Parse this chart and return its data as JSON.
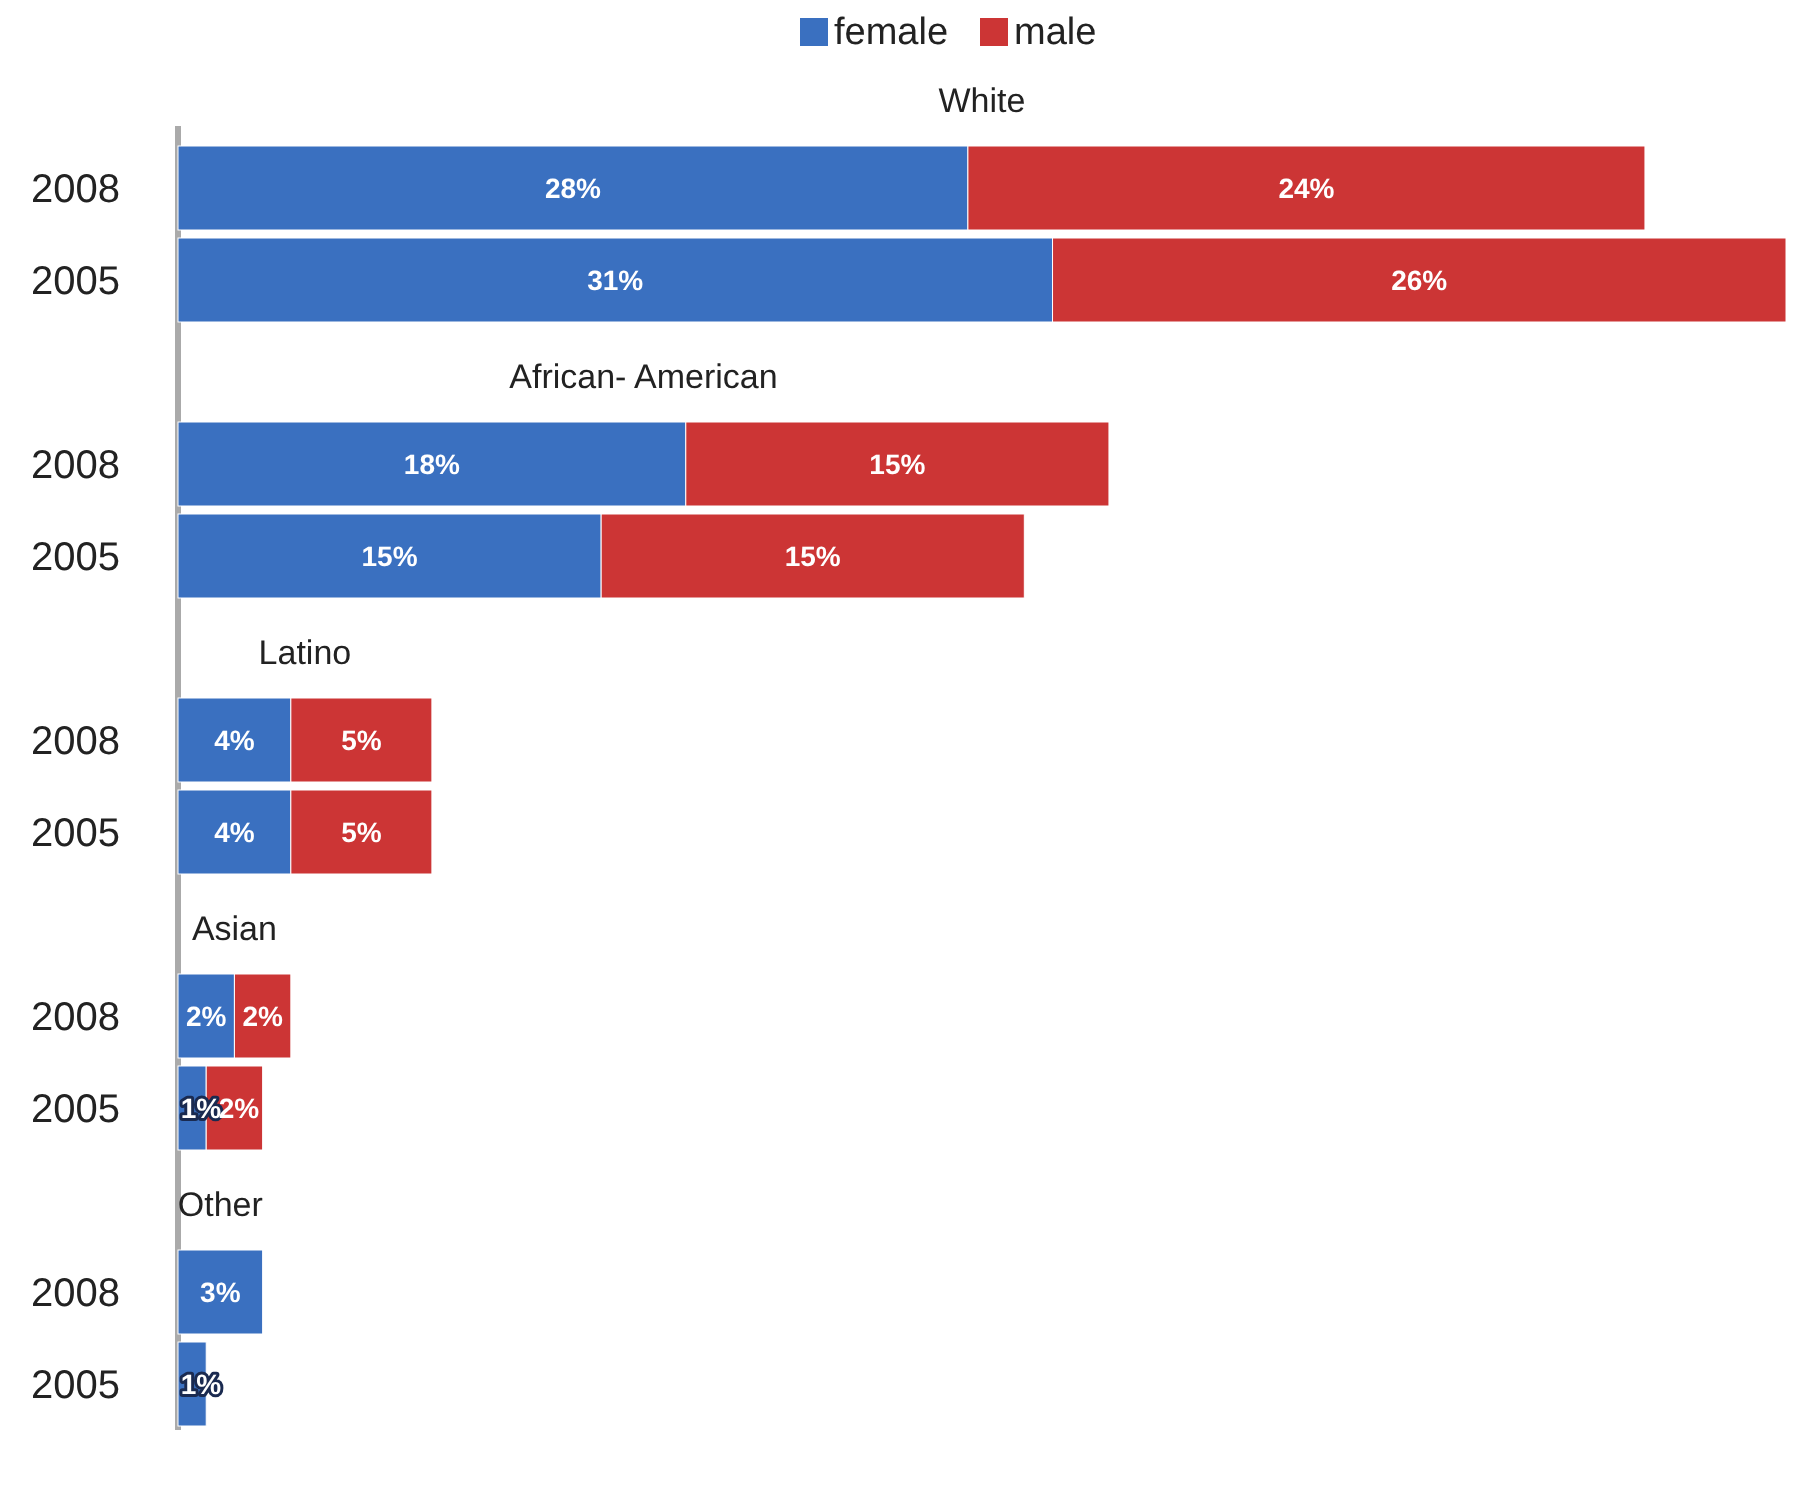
{
  "chart_data": {
    "type": "bar",
    "orientation": "horizontal",
    "stacked": true,
    "legend": "top",
    "categories": [
      "2008",
      "2005",
      "2008",
      "2005",
      "2008",
      "2005",
      "2008",
      "2005",
      "2008",
      "2005"
    ],
    "series": [
      {
        "name": "female",
        "color": "#3a70c0",
        "values": [
          28,
          31,
          18,
          15,
          4,
          4,
          2,
          1,
          3,
          1
        ],
        "value_labels": [
          "28%",
          "31%",
          "18%",
          "15%",
          "4%",
          "4%",
          "2%",
          "1%",
          "3%",
          "1%"
        ]
      },
      {
        "name": "male",
        "color": "#cc3535",
        "values": [
          24,
          26,
          15,
          15,
          5,
          5,
          2,
          2,
          null,
          null
        ],
        "value_labels": [
          "24%",
          "26%",
          "15%",
          "15%",
          "5%",
          "5%",
          "2%",
          "2%",
          null,
          null
        ]
      }
    ],
    "annotations": [
      "White",
      "African- American",
      "Latino",
      "Asian",
      "Other"
    ]
  }
}
